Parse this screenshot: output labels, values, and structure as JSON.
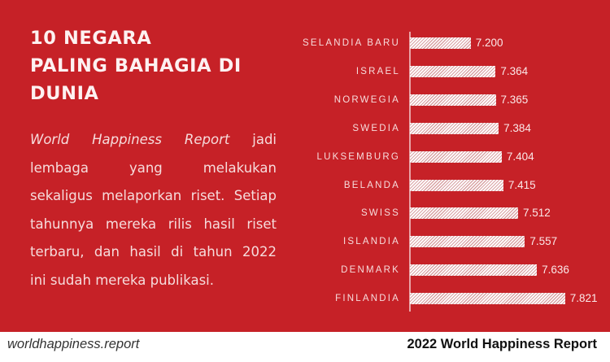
{
  "header": {
    "title_lines": [
      "10 NEGARA",
      "PALING BAHAGIA DI",
      "DUNIA"
    ]
  },
  "description": {
    "lines": [
      {
        "italic": "World Happiness Report",
        "rest": " jadi"
      },
      {
        "text": "lembaga yang melakukan"
      },
      {
        "text": "sekaligus melaporkan riset. Setiap"
      },
      {
        "text": "tahunnya mereka rilis hasil riset"
      },
      {
        "text": "terbaru, dan hasil di tahun 2022"
      },
      {
        "text": "ini sudah mereka publikasi."
      }
    ]
  },
  "footer": {
    "source": "worldhappiness.report",
    "report_title": "2022 World Happiness Report"
  },
  "colors": {
    "background_red": "#c62127",
    "bar_fill": "#ffffff",
    "footer_bg": "#ffffff"
  },
  "chart_data": {
    "type": "bar",
    "orientation": "horizontal",
    "title": "10 NEGARA PALING BAHAGIA DI DUNIA",
    "categories": [
      "SELANDIA BARU",
      "ISRAEL",
      "NORWEGIA",
      "SWEDIA",
      "LUKSEMBURG",
      "BELANDA",
      "SWISS",
      "ISLANDIA",
      "DENMARK",
      "FINLANDIA"
    ],
    "values": [
      7.2,
      7.364,
      7.365,
      7.384,
      7.404,
      7.415,
      7.512,
      7.557,
      7.636,
      7.821
    ],
    "value_labels": [
      "7.200",
      "7.364",
      "7.365",
      "7.384",
      "7.404",
      "7.415",
      "7.512",
      "7.557",
      "7.636",
      "7.821"
    ],
    "xlabel": "",
    "ylabel": "",
    "grid": false,
    "legend": null,
    "bar_pattern": "diagonal-hatch"
  }
}
